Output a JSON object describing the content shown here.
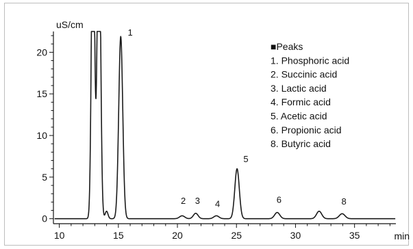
{
  "chart_data": {
    "type": "line",
    "ylabel": "uS/cm",
    "xlabel": "min",
    "xlim": [
      9.5,
      38.5
    ],
    "ylim": [
      -0.6,
      22.5
    ],
    "x_ticks": [
      10,
      15,
      20,
      25,
      30,
      35
    ],
    "y_ticks": [
      0,
      5,
      10,
      15,
      20
    ],
    "x_tick_labels": [
      "10",
      "15",
      "20",
      "25",
      "30",
      "35"
    ],
    "y_tick_labels": [
      "0",
      "5",
      "10",
      "15",
      "20"
    ],
    "grid": false,
    "legend": {
      "placement": "top-right",
      "title": "■Peaks",
      "entries": [
        "1. Phosphoric acid",
        "2. Succinic acid",
        "3. Lactic acid",
        "4. Formic acid",
        "5. Acetic acid",
        "6. Propionic acid",
        "8. Butyric acid"
      ]
    },
    "series": [
      {
        "color": "#1a1a1a",
        "peaks": [
          {
            "x": 12.85,
            "height": 40,
            "width": 0.13
          },
          {
            "x": 13.35,
            "height": 40,
            "width": 0.14
          },
          {
            "x": 14.0,
            "height": 0.9,
            "width": 0.12
          },
          {
            "x": 15.2,
            "height": 21.9,
            "width": 0.17
          },
          {
            "x": 20.4,
            "height": 0.35,
            "width": 0.22
          },
          {
            "x": 21.55,
            "height": 0.65,
            "width": 0.2
          },
          {
            "x": 23.3,
            "height": 0.35,
            "width": 0.22
          },
          {
            "x": 25.05,
            "height": 6.0,
            "width": 0.19
          },
          {
            "x": 28.45,
            "height": 0.75,
            "width": 0.22
          },
          {
            "x": 32.0,
            "height": 0.9,
            "width": 0.22
          },
          {
            "x": 33.95,
            "height": 0.6,
            "width": 0.24
          }
        ]
      }
    ],
    "annotations": [
      {
        "text": "1",
        "x": 16.0,
        "y": 22.0
      },
      {
        "text": "2",
        "x": 20.5,
        "y": 1.8
      },
      {
        "text": "3",
        "x": 21.7,
        "y": 1.8
      },
      {
        "text": "4",
        "x": 23.4,
        "y": 1.4
      },
      {
        "text": "5",
        "x": 25.8,
        "y": 6.8
      },
      {
        "text": "6",
        "x": 28.6,
        "y": 1.9
      },
      {
        "text": "8",
        "x": 34.1,
        "y": 1.7
      }
    ]
  }
}
